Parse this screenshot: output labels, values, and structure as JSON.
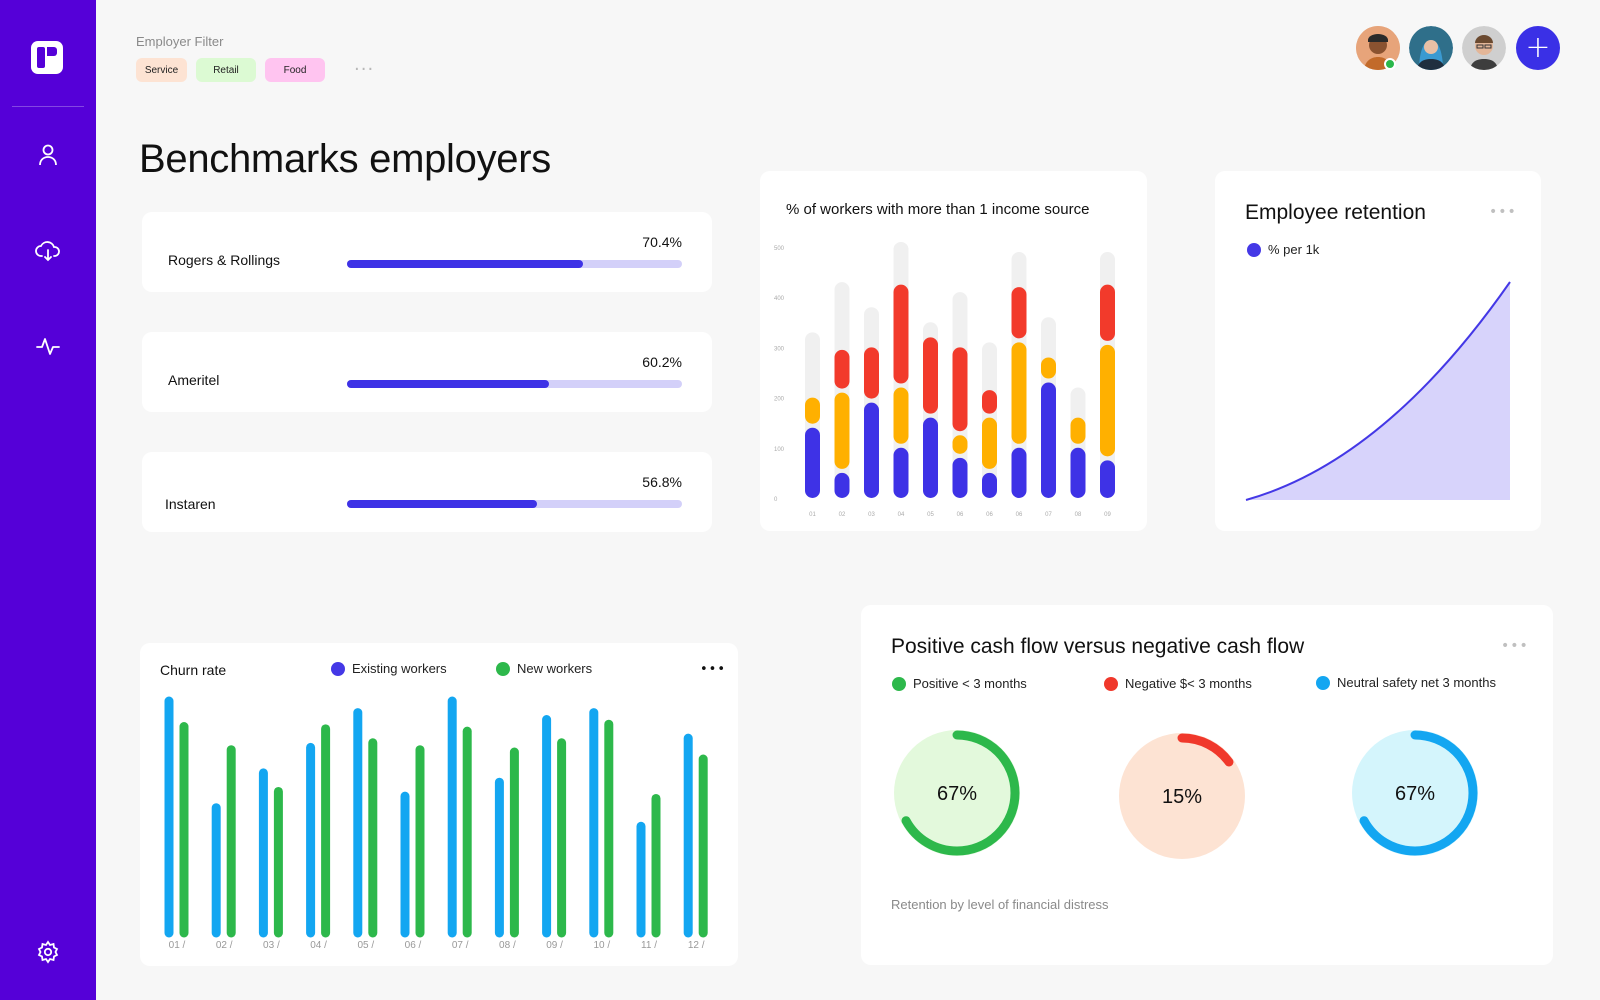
{
  "sidebar": {
    "nav": [
      "user-icon",
      "cloud-download-icon",
      "activity-icon"
    ],
    "settings_icon": "gear-icon"
  },
  "filter": {
    "label": "Employer Filter",
    "chips": [
      {
        "label": "Service",
        "color": "#fde3d3"
      },
      {
        "label": "Retail",
        "color": "#dcfad3"
      },
      {
        "label": "Food",
        "color": "#ffc4f0"
      }
    ]
  },
  "header": {
    "add_icon": "plus-icon"
  },
  "page_title": "Benchmarks employers",
  "benchmarks": [
    {
      "name": "Rogers & Rollings",
      "pct_label": "70.4%",
      "value": 0.704
    },
    {
      "name": "Ameritel",
      "pct_label": "60.2%",
      "value": 0.602
    },
    {
      "name": "Instaren",
      "pct_label": "56.8%",
      "value": 0.568
    }
  ],
  "income_chart": {
    "title": "% of workers with more than 1 income source"
  },
  "retention": {
    "title": "Employee retention",
    "legend": "% per 1k",
    "color": "#4438e6"
  },
  "churn": {
    "title": "Churn rate",
    "legend_existing": "Existing workers",
    "legend_new": "New workers"
  },
  "cashflow": {
    "title": "Positive cash flow versus negative cash flow",
    "legend": [
      {
        "label": "Positive < 3 months",
        "color": "#2db84b"
      },
      {
        "label": "Negative $< 3 months",
        "color": "#f0382b"
      },
      {
        "label": "Neutral safety net 3 months",
        "color": "#13a6f1"
      }
    ],
    "donuts": [
      {
        "label": "67%",
        "value": 0.67,
        "color": "#2db84b",
        "bg": "#e3f9dc"
      },
      {
        "label": "15%",
        "value": 0.15,
        "color": "#f0382b",
        "bg": "#fde3d3"
      },
      {
        "label": "67%",
        "value": 0.67,
        "color": "#13a6f1",
        "bg": "#d4f5fc"
      }
    ],
    "footnote": "Retention by level of financial distress"
  },
  "chart_data": [
    {
      "type": "bar",
      "title": "% of workers with more than 1 income source",
      "categories": [
        "01",
        "02",
        "03",
        "04",
        "05",
        "06",
        "06",
        "06",
        "07",
        "08",
        "09"
      ],
      "yticks": [
        "0",
        "100",
        "200",
        "300",
        "400",
        "500"
      ],
      "ylim": [
        0,
        500
      ],
      "series": [
        {
          "color": "#3e32e6",
          "values": [
            140,
            50,
            190,
            100,
            160,
            80,
            50,
            100,
            230,
            100,
            75
          ]
        },
        {
          "color": "#ffb000",
          "values": [
            60,
            160,
            0,
            120,
            0,
            45,
            110,
            210,
            50,
            60,
            230
          ]
        },
        {
          "color": "#f23a2b",
          "values": [
            0,
            85,
            110,
            205,
            160,
            175,
            55,
            110,
            0,
            0,
            120
          ]
        },
        {
          "color": "#f0f0f0",
          "total": [
            330,
            430,
            380,
            510,
            350,
            410,
            310,
            490,
            360,
            220,
            490
          ]
        }
      ]
    },
    {
      "type": "area",
      "title": "Employee retention",
      "series": [
        {
          "name": "% per 1k",
          "shape": "exponential-growth"
        }
      ]
    },
    {
      "type": "bar",
      "title": "Churn rate",
      "categories": [
        "01 /",
        "02 /",
        "03 /",
        "04 /",
        "05 /",
        "06 /",
        "07 /",
        "08 /",
        "09 /",
        "10 /",
        "11 /",
        "12 /"
      ],
      "ylim": [
        0,
        100
      ],
      "series": [
        {
          "color": "#13a6f1",
          "values": [
            100,
            54,
            69,
            80,
            95,
            59,
            100,
            65,
            92,
            95,
            46,
            84
          ]
        },
        {
          "color": "#2db84b",
          "values": [
            89,
            79,
            61,
            88,
            82,
            79,
            87,
            78,
            82,
            90,
            58,
            75
          ]
        }
      ]
    }
  ]
}
